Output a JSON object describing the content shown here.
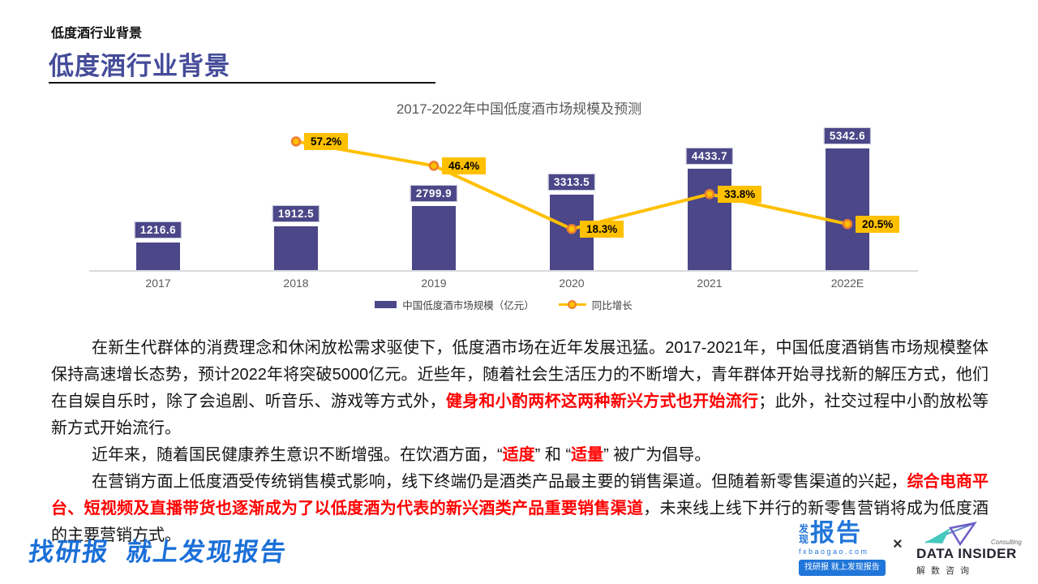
{
  "header": {
    "eyebrow": "低度酒行业背景",
    "title": "低度酒行业背景"
  },
  "chart_data": {
    "type": "bar+line",
    "title": "2017-2022年中国低度酒市场规模及预测",
    "categories": [
      "2017",
      "2018",
      "2019",
      "2020",
      "2021",
      "2022E"
    ],
    "series": [
      {
        "name": "中国低度酒市场规模（亿元）",
        "type": "bar",
        "color": "#4B4788",
        "values": [
          1216.6,
          1912.5,
          2799.9,
          3313.5,
          4433.7,
          5342.6
        ]
      },
      {
        "name": "同比增长",
        "type": "line",
        "color": "#FFC000",
        "marker_ring_color": "#ED7D31",
        "unit": "%",
        "values": [
          null,
          57.2,
          46.4,
          18.3,
          33.8,
          20.5
        ]
      }
    ],
    "xlabel": "",
    "ylabel": "",
    "grid": false,
    "legend_position": "bottom",
    "bar_axis_range": [
      0,
      6500
    ],
    "line_axis_range": [
      0,
      66
    ]
  },
  "body": {
    "paragraphs": [
      {
        "segments": [
          {
            "text": "在新生代群体的消费理念和休闲放松需求驱使下，低度酒市场在近年发展迅猛。2017-2021年，中国低度酒销售市场规模整体保持高速增长态势，预计2022年将突破5000亿元。近些年，随着社会生活压力的不断增大，青年群体开始寻找新的解压方式，他们在自娱自乐时，除了会追剧、听音乐、游戏等方式外，",
            "red": false
          },
          {
            "text": "健身和小酌两杯这两种新兴方式也开始流行",
            "red": true
          },
          {
            "text": "；此外，社交过程中小酌放松等新方式开始流行。",
            "red": false
          }
        ]
      },
      {
        "segments": [
          {
            "text": "近年来，随着国民健康养生意识不断增强。在饮酒方面，“",
            "red": false
          },
          {
            "text": "适度",
            "red": true
          },
          {
            "text": "” 和 “",
            "red": false
          },
          {
            "text": "适量",
            "red": true
          },
          {
            "text": "” 被广为倡导。",
            "red": false
          }
        ]
      },
      {
        "segments": [
          {
            "text": "在营销方面上低度酒受传统销售模式影响，线下终端仍是酒类产品最主要的销售渠道。但随着新零售渠道的兴起，",
            "red": false
          },
          {
            "text": "综合电商平台、短视频及直播带货也逐渐成为了以低度酒为代表的新兴酒类产品重要销售渠道",
            "red": true
          },
          {
            "text": "，未来线上线下并行的新零售营销将成为低度酒的主要营销方式。",
            "red": false
          }
        ]
      }
    ]
  },
  "footer": {
    "slogan": "找研报  就上发现报告",
    "fx_logo": {
      "stacked_top": "发",
      "stacked_bottom": "现",
      "big": "报告",
      "domain": "fxbaogao.com",
      "button": "找研报 就上发现报告"
    },
    "cross": "×",
    "data_insider": {
      "name": "DATA INSIDER",
      "consulting": "Consulting",
      "cn": "解数咨询"
    }
  }
}
